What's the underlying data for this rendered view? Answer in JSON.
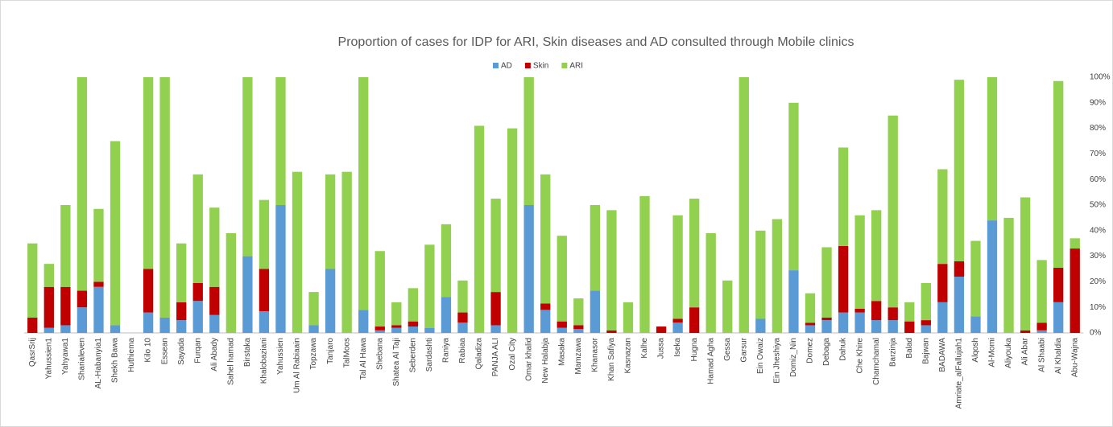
{
  "chart_data": {
    "type": "stacked_bar",
    "title": "Proportion of cases for IDP for ARI, Skin diseases and AD consulted through Mobile clinics",
    "categories": [
      "QasrSrij",
      "Yahussien1",
      "Yahyawa1",
      "Sharialeven",
      "AL-Habanyia1",
      "Shekh Bawa",
      "Huthiema",
      "Kilo 10",
      "Essean",
      "Sayada",
      "Furqan",
      "Ali Abady",
      "Sahel hamad",
      "Birstaka",
      "Khalobaziani",
      "Yahussien",
      "Um Al Rabiaain",
      "Topzawa",
      "Tanjaro",
      "TalMoos",
      "Tal Al Hawa",
      "Shebana",
      "Shatea Al Taji",
      "Seberden",
      "Sardashti",
      "Raniya",
      "Rabiaa",
      "Qaladiza",
      "PANJA ALI",
      "Ozal City",
      "Omar khalid",
      "New Halabja",
      "Masaka",
      "Mamzawa",
      "Khanasor",
      "Khan Safiya",
      "Kasnazan",
      "Kalhe",
      "Jussa",
      "Iseka",
      "Hugna",
      "Hamad Agha",
      "Gessa",
      "Garsur",
      "Ein Owaiz",
      "Ein Jheshiya",
      "Domiz_Nin",
      "Domez",
      "Debaga",
      "Dahuk",
      "Che Khire",
      "Chamchamal",
      "Barzinja",
      "Balad",
      "Bajwan",
      "BADAWA",
      "Amriate_alFallujah1",
      "Alqosh",
      "Al-Momi",
      "Aliyouka",
      "Ali Abar",
      "Al Shaabi",
      "Al Khaldia",
      "Abu-Wajna"
    ],
    "series": [
      {
        "name": "AD",
        "color": "#5b9bd5",
        "values": [
          0,
          2,
          3,
          10,
          18,
          3,
          0,
          8,
          6,
          5,
          12.5,
          7,
          0,
          30,
          8.5,
          50,
          0,
          3,
          25,
          0,
          9,
          1,
          2,
          2.5,
          2,
          14,
          4,
          0,
          3,
          0,
          50,
          9,
          2,
          1.5,
          16.5,
          0,
          0,
          0,
          0,
          4,
          0,
          0,
          0,
          0,
          5.5,
          0,
          24.5,
          3,
          5,
          8,
          8,
          5,
          5,
          0,
          3,
          12,
          22,
          6.5,
          44,
          0,
          0,
          1,
          12,
          0
        ]
      },
      {
        "name": "Skin",
        "color": "#c00000",
        "values": [
          6,
          16,
          15,
          6.5,
          2,
          0,
          0,
          17,
          0,
          7,
          7,
          11,
          0,
          0,
          16.5,
          0,
          0,
          0,
          0,
          0,
          0,
          1.5,
          1,
          2,
          0,
          0,
          4,
          0,
          13,
          0,
          0,
          2.5,
          2.5,
          1.5,
          0,
          1,
          0,
          0,
          2.5,
          1.5,
          10,
          0,
          0,
          0,
          0,
          0,
          0,
          1,
          1,
          26,
          1.5,
          7.5,
          5,
          4.5,
          2,
          15,
          6,
          0,
          0,
          0,
          1,
          3,
          13.5,
          33
        ]
      },
      {
        "name": "ARI",
        "color": "#92d050",
        "values": [
          29,
          9,
          32,
          83.5,
          28.5,
          72,
          0,
          75,
          94,
          23,
          42.5,
          31,
          39,
          70,
          27,
          50,
          63,
          13,
          37,
          63,
          91,
          29.5,
          9,
          13,
          32.5,
          28.5,
          12.5,
          81,
          36.5,
          80,
          50,
          50.5,
          33.5,
          10.5,
          33.5,
          47,
          12,
          53.5,
          0,
          40.5,
          42.5,
          39,
          20.5,
          100,
          34.5,
          44.5,
          65.5,
          11.5,
          27.5,
          38.5,
          36.5,
          35.5,
          75,
          7.5,
          14.5,
          37,
          71,
          29.5,
          56,
          45,
          52,
          24.5,
          73,
          4
        ]
      }
    ],
    "ylim": [
      0,
      100
    ],
    "yticks": [
      {
        "value": 0,
        "label": "0%"
      },
      {
        "value": 10,
        "label": "10%"
      },
      {
        "value": 20,
        "label": "20%"
      },
      {
        "value": 30,
        "label": "30%"
      },
      {
        "value": 40,
        "label": "40%"
      },
      {
        "value": 50,
        "label": "50%"
      },
      {
        "value": 60,
        "label": "60%"
      },
      {
        "value": 70,
        "label": "70%"
      },
      {
        "value": 80,
        "label": "80%"
      },
      {
        "value": 90,
        "label": "90%"
      },
      {
        "value": 100,
        "label": "100%"
      }
    ],
    "grid": false,
    "legend": "top"
  }
}
